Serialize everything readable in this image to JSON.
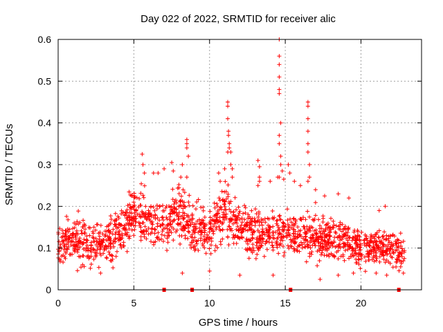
{
  "chart_data": {
    "type": "scatter",
    "title": "Day 022 of 2022, SRMTID for receiver alic",
    "xlabel": "GPS time / hours",
    "ylabel": "SRMTID / TECUs",
    "xlim": [
      0,
      24
    ],
    "ylim": [
      0,
      0.6
    ],
    "x_ticks": [
      0,
      5,
      10,
      15,
      20
    ],
    "x_tick_labels": [
      "0",
      "5",
      "10",
      "15",
      "20"
    ],
    "y_ticks": [
      0,
      0.1,
      0.2,
      0.3,
      0.4,
      0.5,
      0.6
    ],
    "y_tick_labels": [
      "0",
      "0.1",
      "0.2",
      "0.3",
      "0.4",
      "0.5",
      "0.6"
    ],
    "grid": true,
    "marker": "plus",
    "series_color": "#ff0000",
    "data_extent_hours": [
      0,
      22.9
    ],
    "background_level_by_hour": [
      [
        0,
        0.11
      ],
      [
        1,
        0.12
      ],
      [
        2,
        0.11
      ],
      [
        3,
        0.11
      ],
      [
        4,
        0.13
      ],
      [
        5,
        0.19
      ],
      [
        6,
        0.17
      ],
      [
        7,
        0.15
      ],
      [
        8,
        0.19
      ],
      [
        9,
        0.14
      ],
      [
        10,
        0.14
      ],
      [
        11,
        0.19
      ],
      [
        12,
        0.15
      ],
      [
        13,
        0.14
      ],
      [
        14,
        0.13
      ],
      [
        15,
        0.14
      ],
      [
        16,
        0.13
      ],
      [
        17,
        0.13
      ],
      [
        18,
        0.12
      ],
      [
        19,
        0.12
      ],
      [
        20,
        0.1
      ],
      [
        21,
        0.1
      ],
      [
        22,
        0.1
      ],
      [
        22.9,
        0.08
      ]
    ],
    "peak_points": [
      [
        5.55,
        0.325
      ],
      [
        5.6,
        0.3
      ],
      [
        5.7,
        0.28
      ],
      [
        6.3,
        0.28
      ],
      [
        6.6,
        0.28
      ],
      [
        7.0,
        0.29
      ],
      [
        7.5,
        0.305
      ],
      [
        7.6,
        0.285
      ],
      [
        8.2,
        0.3
      ],
      [
        8.5,
        0.27
      ],
      [
        8.5,
        0.36
      ],
      [
        8.5,
        0.35
      ],
      [
        8.5,
        0.34
      ],
      [
        8.6,
        0.32
      ],
      [
        8.1,
        0.27
      ],
      [
        10.6,
        0.28
      ],
      [
        10.7,
        0.26
      ],
      [
        11.0,
        0.29
      ],
      [
        11.2,
        0.45
      ],
      [
        11.2,
        0.44
      ],
      [
        11.2,
        0.41
      ],
      [
        11.25,
        0.38
      ],
      [
        11.25,
        0.37
      ],
      [
        11.3,
        0.35
      ],
      [
        11.3,
        0.34
      ],
      [
        11.2,
        0.33
      ],
      [
        11.4,
        0.33
      ],
      [
        11.4,
        0.3
      ],
      [
        11.5,
        0.29
      ],
      [
        11.5,
        0.27
      ],
      [
        13.2,
        0.31
      ],
      [
        13.3,
        0.295
      ],
      [
        13.3,
        0.27
      ],
      [
        13.3,
        0.26
      ],
      [
        13.2,
        0.25
      ],
      [
        14.0,
        0.26
      ],
      [
        14.5,
        0.27
      ],
      [
        14.6,
        0.6
      ],
      [
        14.6,
        0.56
      ],
      [
        14.6,
        0.54
      ],
      [
        14.6,
        0.51
      ],
      [
        14.6,
        0.48
      ],
      [
        14.6,
        0.47
      ],
      [
        14.7,
        0.4
      ],
      [
        14.6,
        0.37
      ],
      [
        14.6,
        0.35
      ],
      [
        14.7,
        0.32
      ],
      [
        14.7,
        0.3
      ],
      [
        14.8,
        0.285
      ],
      [
        14.6,
        0.27
      ],
      [
        14.9,
        0.265
      ],
      [
        15.2,
        0.3
      ],
      [
        15.3,
        0.28
      ],
      [
        15.6,
        0.26
      ],
      [
        16.0,
        0.25
      ],
      [
        16.5,
        0.45
      ],
      [
        16.5,
        0.44
      ],
      [
        16.5,
        0.41
      ],
      [
        16.5,
        0.38
      ],
      [
        16.5,
        0.35
      ],
      [
        16.5,
        0.33
      ],
      [
        16.6,
        0.3
      ],
      [
        16.6,
        0.27
      ],
      [
        16.5,
        0.26
      ],
      [
        17.0,
        0.24
      ],
      [
        17.6,
        0.225
      ],
      [
        18.5,
        0.23
      ],
      [
        19.2,
        0.22
      ],
      [
        21.6,
        0.2
      ],
      [
        21.2,
        0.19
      ]
    ],
    "low_points": [
      [
        2.8,
        0.04
      ],
      [
        8.2,
        0.04
      ],
      [
        10.0,
        0.045
      ],
      [
        12.0,
        0.035
      ],
      [
        14.2,
        0.035
      ],
      [
        17.3,
        0.025
      ],
      [
        18.5,
        0.035
      ],
      [
        19.5,
        0.04
      ],
      [
        21.0,
        0.04
      ],
      [
        21.7,
        0.035
      ],
      [
        22.8,
        0.04
      ]
    ],
    "axis_markers_hours": [
      7.0,
      8.85,
      15.35,
      22.5
    ]
  }
}
